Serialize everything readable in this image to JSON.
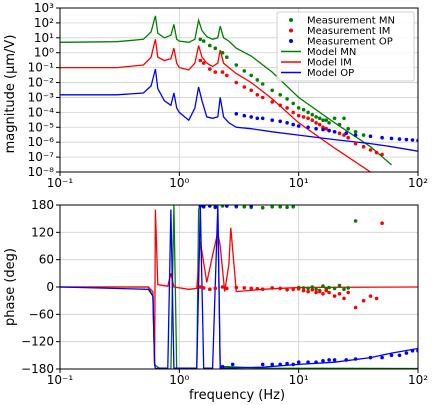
{
  "chart_data": [
    {
      "type": "line",
      "ylabel": "magnitude (μm/V)",
      "xscale": "log",
      "yscale": "log",
      "xlim": [
        0.1,
        100
      ],
      "ylim": [
        1e-08,
        1000
      ],
      "x_ticks": [
        {
          "v": 0.1,
          "label": "10⁻¹"
        },
        {
          "v": 1,
          "label": "10⁰"
        },
        {
          "v": 10,
          "label": "10¹"
        },
        {
          "v": 100,
          "label": "10²"
        }
      ],
      "y_ticks": [
        {
          "v": 1000,
          "label": "10³"
        },
        {
          "v": 100,
          "label": "10²"
        },
        {
          "v": 10,
          "label": "10¹"
        },
        {
          "v": 1,
          "label": "10⁰"
        },
        {
          "v": 0.1,
          "label": "10⁻¹"
        },
        {
          "v": 0.01,
          "label": "10⁻²"
        },
        {
          "v": 0.001,
          "label": "10⁻³"
        },
        {
          "v": 0.0001,
          "label": "10⁻⁴"
        },
        {
          "v": 1e-05,
          "label": "10⁻⁵"
        },
        {
          "v": 1e-06,
          "label": "10⁻⁶"
        },
        {
          "v": 1e-07,
          "label": "10⁻⁷"
        },
        {
          "v": 1e-08,
          "label": "10⁻⁸"
        }
      ],
      "grid": true,
      "legend": {
        "placement": "top-right",
        "entries": [
          {
            "label": "Measurement MN",
            "kind": "marker",
            "color": "#008000"
          },
          {
            "label": "Measurement IM",
            "kind": "marker",
            "color": "#ff0000"
          },
          {
            "label": "Measurement OP",
            "kind": "marker",
            "color": "#0000ff"
          },
          {
            "label": "Model MN",
            "kind": "line",
            "color": "#008000"
          },
          {
            "label": "Model IM",
            "kind": "line",
            "color": "#ff0000"
          },
          {
            "label": "Model OP",
            "kind": "line",
            "color": "#0000ff"
          }
        ]
      },
      "series": [
        {
          "name": "Model MN",
          "kind": "line",
          "color": "#008000",
          "x": [
            0.1,
            0.3,
            0.5,
            0.58,
            0.63,
            0.66,
            0.75,
            0.85,
            0.9,
            0.95,
            1.0,
            1.2,
            1.35,
            1.45,
            1.55,
            1.7,
            1.9,
            2.1,
            2.2,
            2.35,
            2.6,
            3,
            4,
            6,
            10,
            20,
            40,
            60
          ],
          "y": [
            5,
            5.5,
            8,
            25,
            300,
            20,
            10,
            15,
            80,
            8,
            6,
            5,
            8,
            150,
            30,
            12,
            8,
            10,
            60,
            10,
            6,
            2,
            0.6,
            0.05,
            0.001,
            2e-05,
            5e-07,
            3e-08
          ]
        },
        {
          "name": "Model IM",
          "kind": "line",
          "color": "#ff0000",
          "x": [
            0.1,
            0.3,
            0.5,
            0.58,
            0.63,
            0.66,
            0.75,
            0.85,
            0.9,
            0.95,
            1.0,
            1.2,
            1.35,
            1.45,
            1.55,
            1.7,
            1.9,
            2.1,
            2.2,
            2.35,
            2.6,
            3,
            4,
            6,
            10,
            20,
            40,
            60
          ],
          "y": [
            0.1,
            0.1,
            0.15,
            0.5,
            8,
            0.5,
            0.3,
            0.4,
            2,
            0.2,
            0.1,
            0.07,
            0.2,
            3,
            0.5,
            0.2,
            0.12,
            0.2,
            1.5,
            0.2,
            0.1,
            0.04,
            0.01,
            0.0008,
            2e-05,
            4e-07,
            1e-08,
            1e-09
          ]
        },
        {
          "name": "Model OP",
          "kind": "line",
          "color": "#0000ff",
          "x": [
            0.1,
            0.3,
            0.5,
            0.58,
            0.63,
            0.66,
            0.75,
            0.85,
            0.9,
            0.95,
            1.0,
            1.2,
            1.35,
            1.45,
            1.55,
            1.7,
            1.9,
            2.1,
            2.2,
            2.35,
            2.6,
            3,
            4,
            6,
            10,
            20,
            40,
            60,
            100
          ],
          "y": [
            0.0015,
            0.0015,
            0.002,
            0.006,
            0.08,
            0.004,
            0.0006,
            0.0003,
            0.002,
            0.0002,
            0.0001,
            3e-05,
            0.0002,
            0.005,
            0.0006,
            5e-05,
            4e-05,
            5e-05,
            0.001,
            5e-05,
            2e-05,
            1e-05,
            8e-06,
            5e-06,
            3e-06,
            1.5e-06,
            8e-07,
            5e-07,
            2.5e-07
          ]
        },
        {
          "name": "Measurement MN",
          "kind": "scatter",
          "color": "#008000",
          "x": [
            1.5,
            1.6,
            1.8,
            2.0,
            2.3,
            2.5,
            3,
            3.5,
            4,
            4.5,
            5,
            6,
            7,
            8,
            9,
            10,
            11,
            12,
            13,
            14,
            15,
            16,
            17,
            18,
            20,
            22,
            24,
            26,
            30,
            35
          ],
          "y": [
            8,
            6,
            3,
            2,
            1,
            0.5,
            0.15,
            0.06,
            0.03,
            0.015,
            0.008,
            0.003,
            0.0015,
            0.0008,
            0.0004,
            0.0002,
            0.00015,
            0.0001,
            7e-05,
            5e-05,
            4e-05,
            3e-05,
            3e-05,
            2e-05,
            4e-05,
            1.5e-05,
            4e-05,
            8e-06,
            5e-06,
            3e-06
          ]
        },
        {
          "name": "Measurement IM",
          "kind": "scatter",
          "color": "#ff0000",
          "x": [
            1.5,
            1.6,
            1.8,
            2.0,
            2.3,
            2.5,
            3,
            3.5,
            4,
            4.5,
            5,
            6,
            7,
            8,
            9,
            10,
            11,
            12,
            13,
            14,
            15,
            16,
            17,
            18,
            20,
            22,
            24,
            26,
            30,
            35,
            40,
            45,
            50
          ],
          "y": [
            0.3,
            0.2,
            0.08,
            0.05,
            0.05,
            0.03,
            0.01,
            0.005,
            0.003,
            0.0015,
            0.001,
            0.0005,
            0.0003,
            0.0002,
            0.0001,
            6e-05,
            5e-05,
            4e-05,
            3e-05,
            2e-05,
            1.5e-05,
            1e-05,
            8e-06,
            6e-06,
            5e-06,
            4e-06,
            3e-06,
            2e-06,
            8e-07,
            5e-07,
            3e-07,
            2e-07,
            1.5e-07
          ]
        },
        {
          "name": "Measurement OP",
          "kind": "scatter",
          "color": "#0000ff",
          "x": [
            3,
            3.5,
            4,
            4.5,
            5,
            6,
            7,
            8,
            9,
            10,
            12,
            14,
            16,
            18,
            20,
            25,
            30,
            40,
            50,
            60,
            70,
            80,
            90,
            100
          ],
          "y": [
            8e-05,
            6e-05,
            5e-05,
            4e-05,
            4e-05,
            3e-05,
            2.5e-05,
            2e-05,
            1.5e-05,
            1.2e-05,
            1e-05,
            8e-06,
            7e-06,
            6e-06,
            5e-06,
            4e-06,
            3e-06,
            2.5e-06,
            2e-06,
            1.8e-06,
            1.6e-06,
            1.5e-06,
            1.4e-06,
            1.3e-06
          ]
        }
      ]
    },
    {
      "type": "line",
      "xlabel": "frequency (Hz)",
      "ylabel": "phase (deg)",
      "xscale": "log",
      "xlim": [
        0.1,
        100
      ],
      "ylim": [
        -180,
        180
      ],
      "x_ticks": [
        {
          "v": 0.1,
          "label": "10⁻¹"
        },
        {
          "v": 1,
          "label": "10⁰"
        },
        {
          "v": 10,
          "label": "10¹"
        },
        {
          "v": 100,
          "label": "10²"
        }
      ],
      "y_ticks": [
        {
          "v": 180,
          "label": "180"
        },
        {
          "v": 120,
          "label": "120"
        },
        {
          "v": 60,
          "label": "60"
        },
        {
          "v": 0,
          "label": "0"
        },
        {
          "v": -60,
          "label": "−60"
        },
        {
          "v": -120,
          "label": "−120"
        },
        {
          "v": -180,
          "label": "−180"
        }
      ],
      "grid": true,
      "series": [
        {
          "name": "Model MN",
          "kind": "line",
          "color": "#008000",
          "x": [
            0.1,
            0.55,
            0.6,
            0.62,
            0.65,
            0.7,
            0.85,
            0.9,
            0.95,
            1.0,
            1.4,
            1.45,
            1.5,
            1.9,
            2.1,
            2.2,
            2.3,
            2.5,
            5,
            100
          ],
          "y": [
            0,
            0,
            -20,
            -170,
            -175,
            -180,
            -180,
            180,
            -180,
            -180,
            -180,
            170,
            180,
            180,
            180,
            -180,
            -175,
            -175,
            -178,
            -179
          ]
        },
        {
          "name": "Model IM",
          "kind": "line",
          "color": "#ff0000",
          "x": [
            0.1,
            0.55,
            0.6,
            0.62,
            0.63,
            0.66,
            0.8,
            0.85,
            0.9,
            1.0,
            1.2,
            1.4,
            1.5,
            1.7,
            1.9,
            2.1,
            2.2,
            2.4,
            2.6,
            2.7,
            3,
            5,
            10,
            100
          ],
          "y": [
            0,
            0,
            -10,
            -170,
            170,
            5,
            2,
            30,
            0,
            -2,
            -5,
            -3,
            100,
            10,
            70,
            120,
            90,
            -10,
            50,
            130,
            -10,
            -5,
            -1,
            0
          ]
        },
        {
          "name": "Model OP",
          "kind": "line",
          "color": "#0000ff",
          "x": [
            0.1,
            0.55,
            0.6,
            0.62,
            0.63,
            0.66,
            0.8,
            0.85,
            0.9,
            1.0,
            1.4,
            1.5,
            1.6,
            1.9,
            2.1,
            2.2,
            2.4,
            5,
            10,
            20,
            40,
            60,
            100
          ],
          "y": [
            0,
            -5,
            -20,
            -170,
            -180,
            -178,
            -178,
            170,
            -178,
            -178,
            -178,
            178,
            -178,
            -178,
            178,
            -178,
            -178,
            -176,
            -170,
            -165,
            -155,
            -145,
            -135
          ]
        },
        {
          "name": "Measurement MN",
          "kind": "scatter",
          "color": "#008000",
          "x": [
            1.5,
            1.6,
            1.8,
            2.0,
            2.3,
            2.5,
            3,
            3.5,
            4,
            5,
            6,
            7,
            8,
            9,
            10,
            11,
            12,
            13,
            14,
            15,
            16,
            17,
            18,
            20,
            22,
            24,
            26,
            30
          ],
          "y": [
            178,
            178,
            178,
            178,
            178,
            178,
            176,
            176,
            175,
            174,
            176,
            176,
            175,
            176,
            -1,
            -2,
            -3,
            0,
            -5,
            -8,
            2,
            -4,
            -1,
            -3,
            3,
            -5,
            -2,
            145
          ]
        },
        {
          "name": "Measurement IM",
          "kind": "scatter",
          "color": "#ff0000",
          "x": [
            1.5,
            1.6,
            1.8,
            2.0,
            2.3,
            2.5,
            3,
            3.5,
            4,
            4.5,
            5,
            6,
            7,
            8,
            9,
            10,
            11,
            12,
            13,
            14,
            15,
            16,
            17,
            18,
            20,
            22,
            24,
            26,
            30,
            35,
            40,
            45,
            50
          ],
          "y": [
            0,
            -2,
            -5,
            -3,
            0,
            -3,
            -1,
            -2,
            -3,
            -4,
            -5,
            -2,
            -3,
            -6,
            -5,
            -4,
            -8,
            -10,
            -6,
            -12,
            -10,
            -15,
            -8,
            -12,
            -20,
            -15,
            -25,
            -12,
            -45,
            -30,
            -20,
            -25,
            140
          ]
        },
        {
          "name": "Measurement OP",
          "kind": "scatter",
          "color": "#0000ff",
          "x": [
            1.5,
            1.6,
            1.8,
            2.0,
            2.3,
            2.5,
            2.8,
            3,
            4,
            5,
            6,
            7,
            8,
            9,
            10,
            12,
            14,
            16,
            18,
            20,
            25,
            30,
            40,
            50,
            60,
            70,
            80,
            90,
            100
          ],
          "y": [
            178,
            176,
            178,
            175,
            -175,
            178,
            -170,
            178,
            178,
            -170,
            -170,
            -170,
            -168,
            -170,
            -165,
            -165,
            -165,
            -162,
            -160,
            -160,
            -160,
            -158,
            -155,
            -155,
            -150,
            -150,
            -145,
            -140,
            -140
          ]
        }
      ]
    }
  ]
}
